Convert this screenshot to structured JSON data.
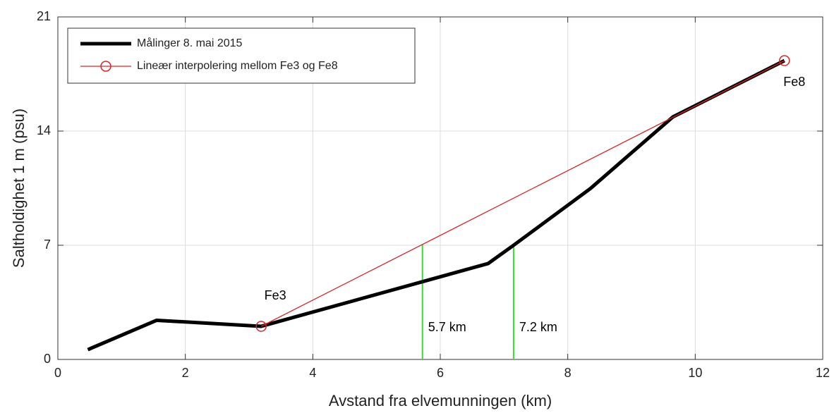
{
  "chart_data": {
    "type": "line",
    "x_label": "Avstand fra elvemunningen (km)",
    "y_label": "Saltholdighet 1 m (psu)",
    "xlim": [
      0,
      12
    ],
    "xticks": [
      0,
      2,
      4,
      6,
      8,
      10,
      12
    ],
    "ylim": [
      0,
      21
    ],
    "yticks": [
      0,
      7,
      14,
      21
    ],
    "grid": true,
    "legend": "upper left",
    "series": [
      {
        "name": "Målinger 8. mai 2015",
        "color": "#000000",
        "x": [
          0.47,
          1.55,
          3.19,
          6.75,
          7.15,
          8.35,
          9.65,
          11.4
        ],
        "values": [
          0.6,
          2.4,
          2.03,
          5.88,
          7.0,
          10.46,
          14.87,
          18.32
        ]
      },
      {
        "name": "Lineær interpolering mellom Fe3 og Fe8",
        "color": "#d62728",
        "marker": "circle",
        "x": [
          3.19,
          11.4
        ],
        "values": [
          2.03,
          18.32
        ],
        "point_labels": [
          "Fe3",
          "Fe8"
        ]
      }
    ],
    "vlines": [
      {
        "x": 5.72,
        "top": 7.05,
        "label": "5.7 km",
        "color": "#33dd33"
      },
      {
        "x": 7.15,
        "top": 7.0,
        "label": "7.2 km",
        "color": "#33dd33"
      }
    ]
  }
}
